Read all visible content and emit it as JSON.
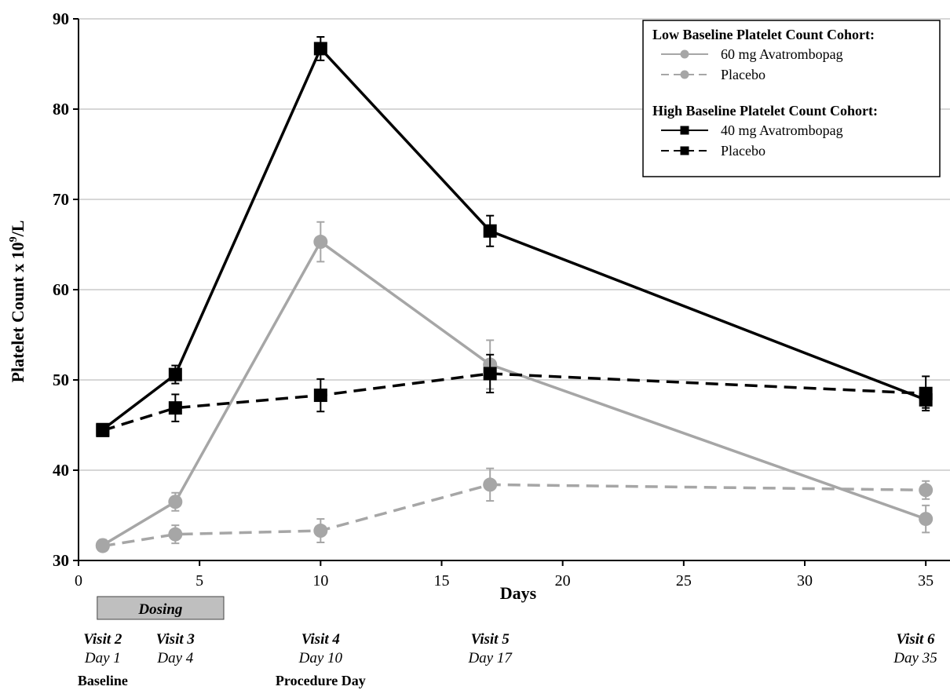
{
  "chart_data": {
    "type": "line",
    "xlabel": "Days",
    "ylabel_main": "Platelet Count  x 10",
    "ylabel_sup": "9",
    "ylabel_unit": "/L",
    "xlim": [
      0,
      36
    ],
    "ylim": [
      30,
      90
    ],
    "xticks": [
      0,
      5,
      10,
      15,
      20,
      25,
      30,
      35
    ],
    "yticks": [
      30,
      40,
      50,
      60,
      70,
      80,
      90
    ],
    "grid": "horizontal",
    "legend_position": "top-right",
    "legend": {
      "groups": [
        {
          "heading": "Low Baseline Platelet Count Cohort:",
          "entries": [
            {
              "label": "60 mg Avatrombopag",
              "series": 0
            },
            {
              "label": "Placebo",
              "series": 1
            }
          ]
        },
        {
          "heading": "High Baseline Platelet Count Cohort:",
          "entries": [
            {
              "label": "40 mg Avatrombopag",
              "series": 2
            },
            {
              "label": "Placebo",
              "series": 3
            }
          ]
        }
      ]
    },
    "series": [
      {
        "name": "60 mg Avatrombopag",
        "color": "#a6a6a6",
        "dash": "solid",
        "marker": "circle",
        "x": [
          1,
          4,
          10,
          17,
          35
        ],
        "y": [
          31.7,
          36.5,
          65.3,
          51.7,
          34.6
        ],
        "err": [
          0.6,
          1.0,
          2.2,
          2.7,
          1.5
        ]
      },
      {
        "name": "Placebo",
        "color": "#a6a6a6",
        "dash": "dashed",
        "marker": "circle",
        "x": [
          1,
          4,
          10,
          17,
          35
        ],
        "y": [
          31.6,
          32.9,
          33.3,
          38.4,
          37.8
        ],
        "err": [
          0.5,
          1.0,
          1.3,
          1.8,
          1.0
        ]
      },
      {
        "name": "40 mg Avatrombopag",
        "color": "#000000",
        "dash": "solid",
        "marker": "square",
        "x": [
          1,
          4,
          10,
          17,
          35
        ],
        "y": [
          44.5,
          50.6,
          86.7,
          66.5,
          47.8
        ],
        "err": [
          0.6,
          1.0,
          1.3,
          1.7,
          0.9
        ]
      },
      {
        "name": "Placebo",
        "color": "#000000",
        "dash": "dashed",
        "marker": "square",
        "x": [
          1,
          4,
          10,
          17,
          35
        ],
        "y": [
          44.4,
          46.9,
          48.3,
          50.7,
          48.5
        ],
        "err": [
          0.6,
          1.5,
          1.8,
          2.1,
          1.9
        ]
      }
    ],
    "dosing": {
      "label": "Dosing",
      "start": 1,
      "end": 6,
      "color": "#bfbfbf"
    },
    "visits": [
      {
        "x": 1,
        "visit": "Visit 2",
        "day": "Day 1",
        "note": "Baseline"
      },
      {
        "x": 4,
        "visit": "Visit 3",
        "day": "Day 4",
        "note": ""
      },
      {
        "x": 10,
        "visit": "Visit 4",
        "day": "Day 10",
        "note": "Procedure Day"
      },
      {
        "x": 17,
        "visit": "Visit 5",
        "day": "Day 17",
        "note": ""
      },
      {
        "x": 35,
        "visit": "Visit 6",
        "day": "Day 35",
        "note": ""
      }
    ]
  }
}
